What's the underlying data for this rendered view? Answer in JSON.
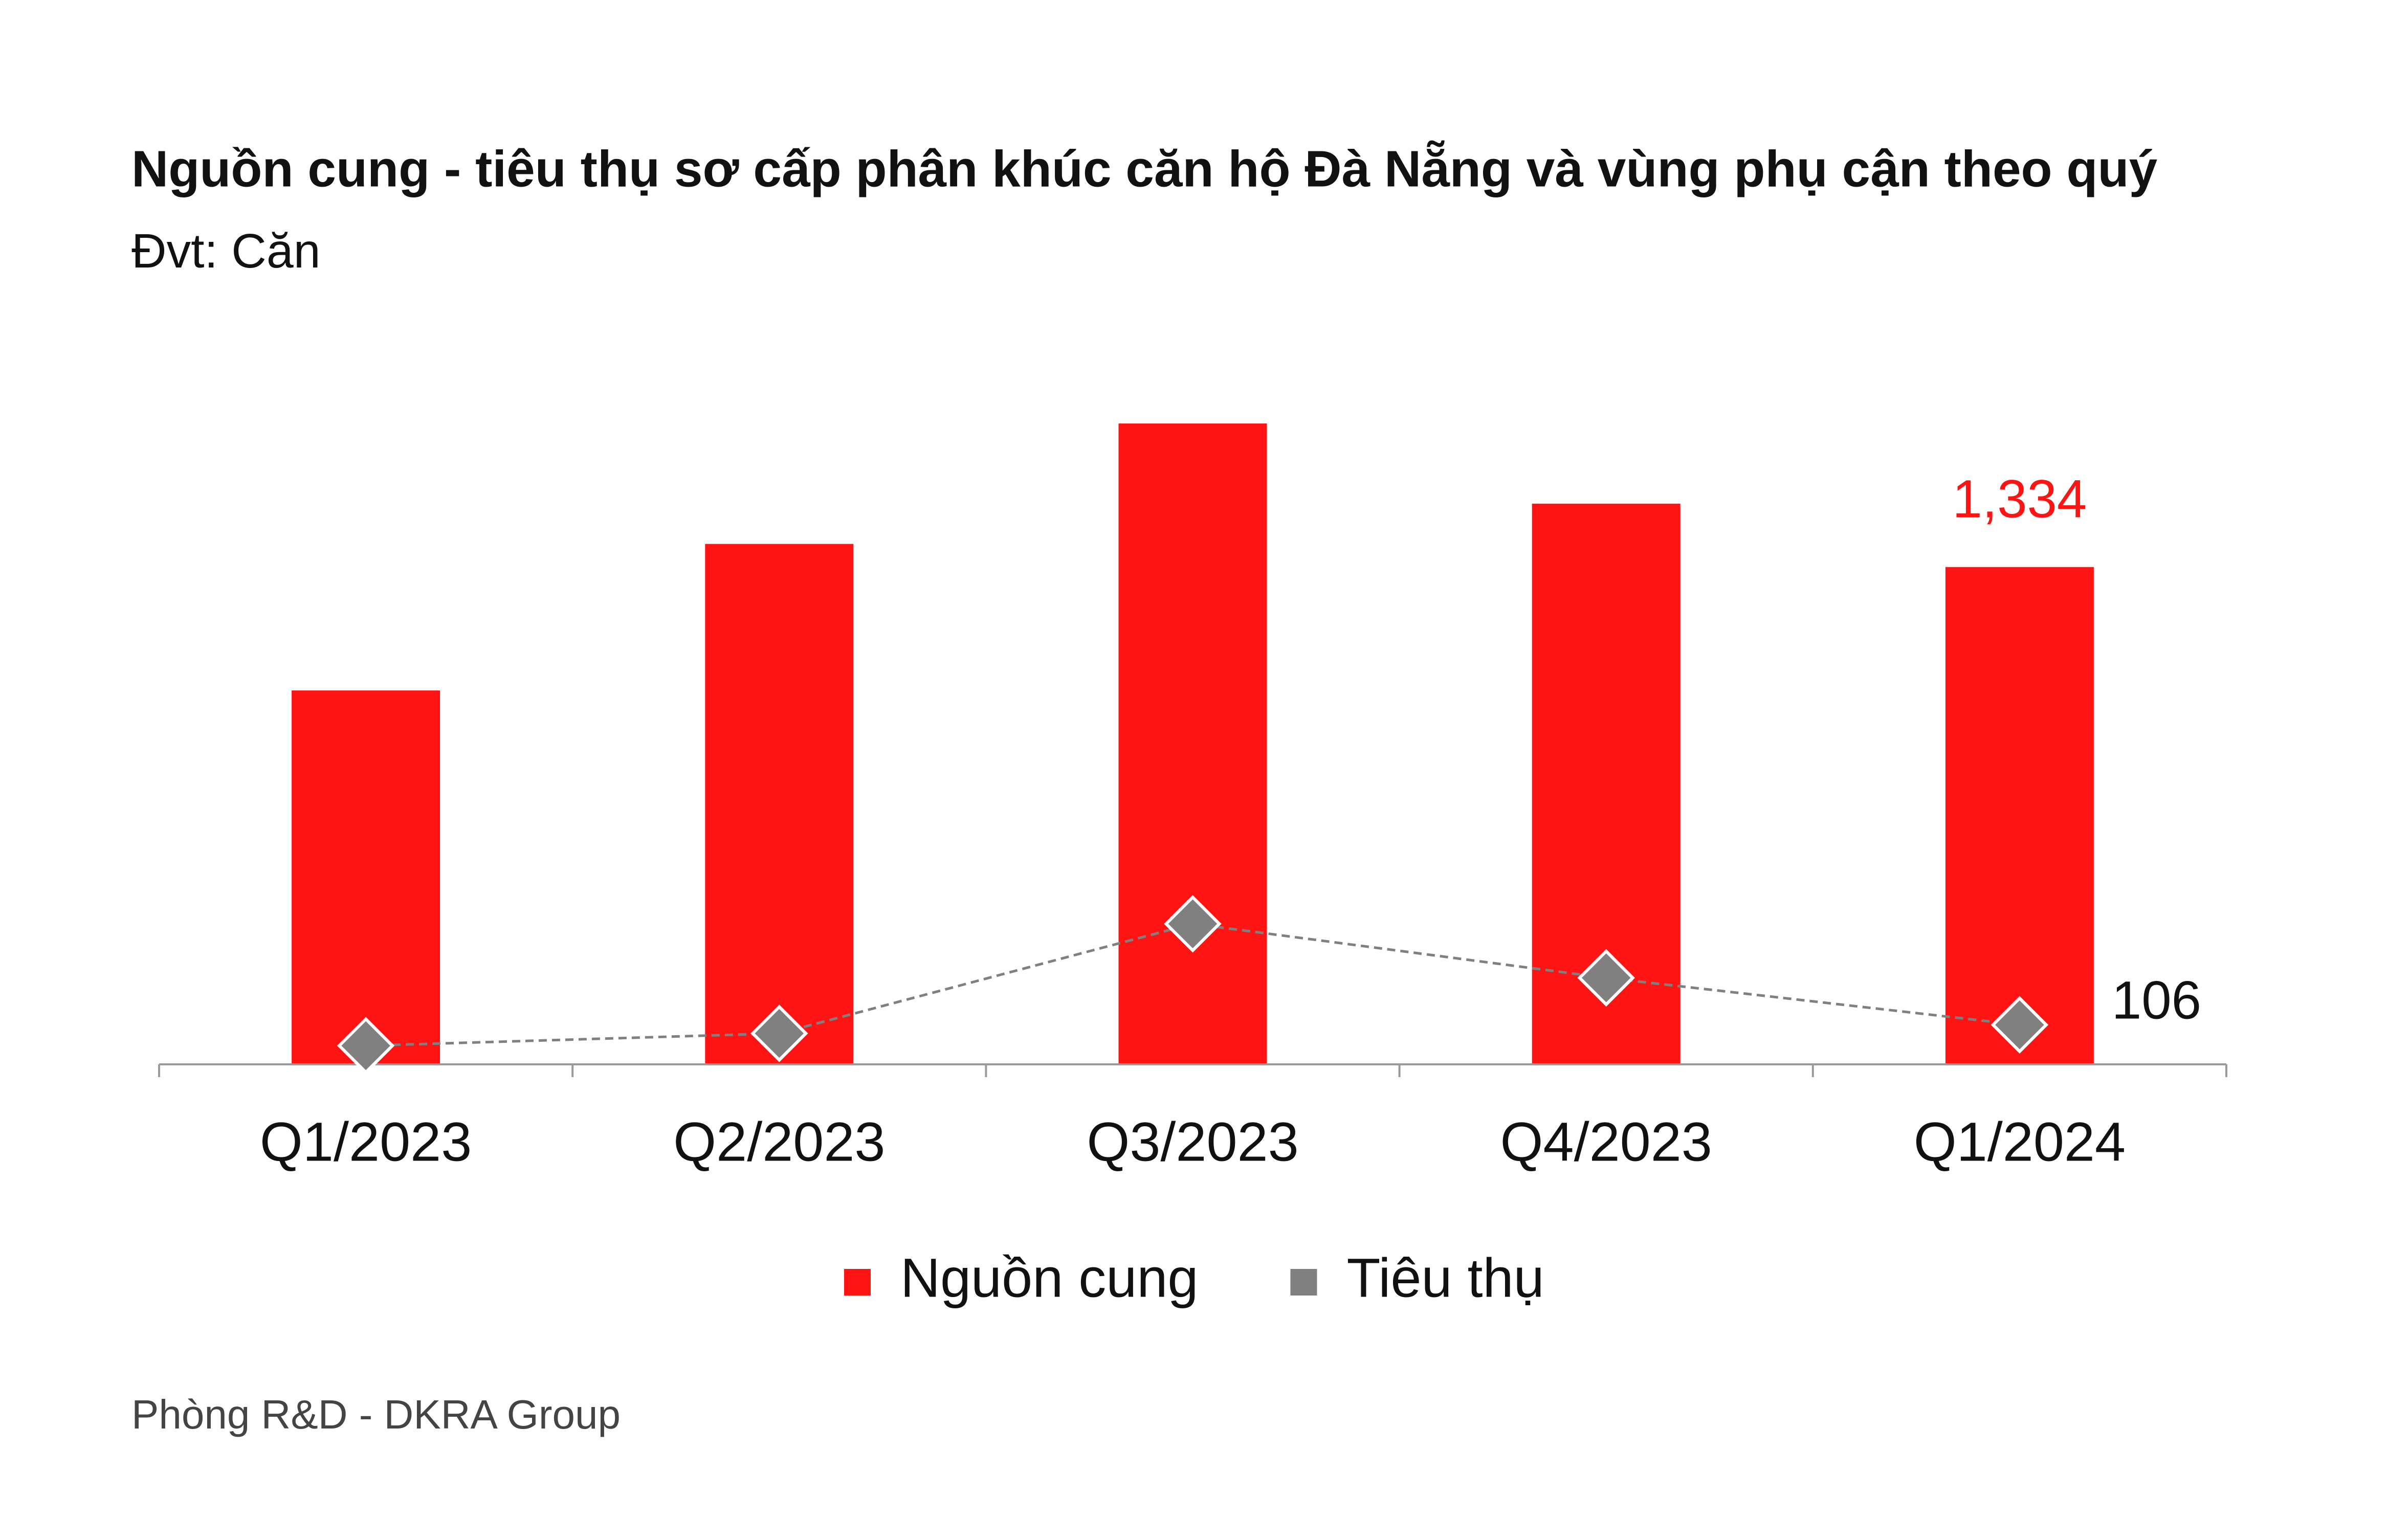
{
  "chart_data": {
    "type": "bar-line",
    "title": "Nguồn cung - tiêu thụ sơ cấp phân khúc căn hộ Đà Nẵng và vùng phụ cận theo quý",
    "subtitle": "Đvt: Căn",
    "source": "Phòng R&D - DKRA Group",
    "categories": [
      "Q1/2023",
      "Q2/2023",
      "Q3/2023",
      "Q4/2023",
      "Q1/2024"
    ],
    "series": [
      {
        "name": "Nguồn cung",
        "type": "bar",
        "color": "#ff1313",
        "values": [
          1003,
          1396,
          1719,
          1504,
          1334
        ],
        "value_labels": [
          null,
          null,
          null,
          null,
          "1,334"
        ]
      },
      {
        "name": "Tiêu thụ",
        "type": "line",
        "color": "#808080",
        "values": [
          50,
          83,
          377,
          232,
          106
        ],
        "value_labels": [
          null,
          null,
          null,
          null,
          "106"
        ]
      }
    ],
    "ylim": [
      0,
      1800
    ]
  }
}
